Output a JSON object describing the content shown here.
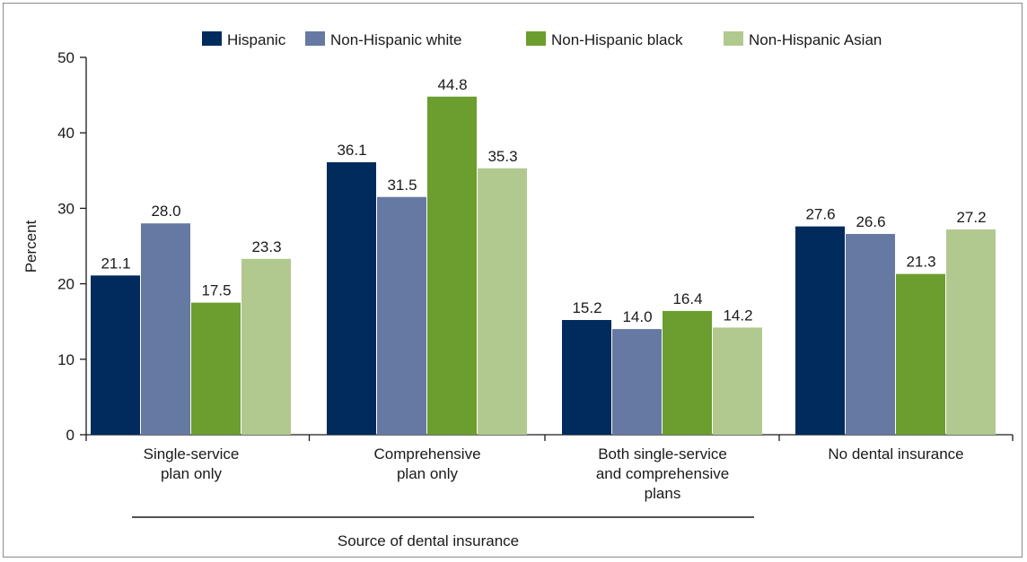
{
  "chart_data": {
    "type": "bar",
    "title": "",
    "ylabel": "Percent",
    "xlabel": "Source of dental insurance",
    "ylim": [
      0,
      50
    ],
    "yticks": [
      0,
      10,
      20,
      30,
      40,
      50
    ],
    "grid": false,
    "legend_position": "top",
    "categories": [
      [
        "Single-service",
        "plan only"
      ],
      [
        "Comprehensive",
        "plan only"
      ],
      [
        "Both single-service",
        "and comprehensive",
        "plans"
      ],
      [
        "No dental insurance"
      ]
    ],
    "series": [
      {
        "name": "Hispanic",
        "color": "#002b5c",
        "values": [
          21.1,
          36.1,
          15.2,
          27.6
        ]
      },
      {
        "name": "Non-Hispanic white",
        "color": "#6579a3",
        "values": [
          28.0,
          31.5,
          14.0,
          26.6
        ]
      },
      {
        "name": "Non-Hispanic black",
        "color": "#6b9e2e",
        "values": [
          17.5,
          44.8,
          16.4,
          21.3
        ]
      },
      {
        "name": "Non-Hispanic Asian",
        "color": "#b1c98f",
        "values": [
          23.3,
          35.3,
          14.2,
          27.2
        ]
      }
    ],
    "xlabel_spans_categories": [
      0,
      1,
      2
    ]
  }
}
